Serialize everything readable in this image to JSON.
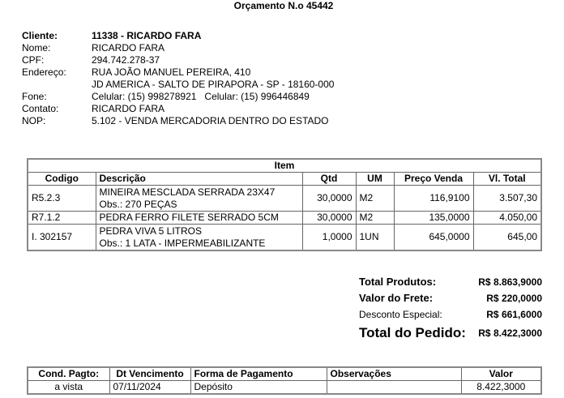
{
  "title": "Orçamento N.o 45442",
  "client": {
    "rows": [
      {
        "label": "Cliente:",
        "value": "11338 - RICARDO FARA"
      },
      {
        "label": "Nome:",
        "value": "RICARDO FARA"
      },
      {
        "label": "CPF:",
        "value": "294.742.278-37"
      },
      {
        "label": "Endereço:",
        "value": "RUA JOÃO MANUEL PEREIRA, 410"
      },
      {
        "label": "",
        "value": "JD AMERICA - SALTO DE PIRAPORA - SP - 18160-000"
      },
      {
        "label": "Fone:",
        "value": "Celular: (15) 998278921   Celular: (15) 996446849"
      },
      {
        "label": "Contato:",
        "value": "RICARDO FARA"
      },
      {
        "label": "NOP:",
        "value": "5.102 - VENDA MERCADORIA DENTRO DO ESTADO"
      }
    ]
  },
  "items": {
    "caption": "Item",
    "headers": [
      "Codigo",
      "Descrição",
      "Qtd",
      "UM",
      "Preço Venda",
      "Vl. Total"
    ],
    "rows": [
      {
        "codigo": "R5.2.3",
        "descricao": "MINEIRA MESCLADA SERRADA 23X47",
        "obs": "Obs.: 270 PEÇAS",
        "qtd": "30,0000",
        "um": "M2",
        "preco": "116,9100",
        "total": "3.507,30"
      },
      {
        "codigo": "R7.1.2",
        "descricao": "PEDRA FERRO FILETE SERRADO 5CM",
        "obs": "",
        "qtd": "30,0000",
        "um": "M2",
        "preco": "135,0000",
        "total": "4.050,00"
      },
      {
        "codigo": "I. 302157",
        "descricao": "PEDRA VIVA 5 LITROS",
        "obs": "Obs.: 1 LATA - IMPERMEABILIZANTE",
        "qtd": "1,0000",
        "um": "1UN",
        "preco": "645,0000",
        "total": "645,00"
      }
    ]
  },
  "totals": {
    "produtos_label": "Total Produtos:",
    "produtos": "R$ 8.863,9000",
    "frete_label": "Valor do Frete:",
    "frete": "R$ 220,0000",
    "desconto_label": "Desconto Especial:",
    "desconto": "R$ 661,6000",
    "pedido_label": "Total do Pedido:",
    "pedido": "R$ 8.422,3000"
  },
  "payment": {
    "headers": [
      "Cond. Pagto:",
      "Dt Vencimento",
      "Forma de Pagamento",
      "Observações",
      "Valor"
    ],
    "row": {
      "cond": "a vista",
      "venc": "07/11/2024",
      "forma": "Depósito",
      "obs": "",
      "valor": "8.422,3000"
    }
  }
}
